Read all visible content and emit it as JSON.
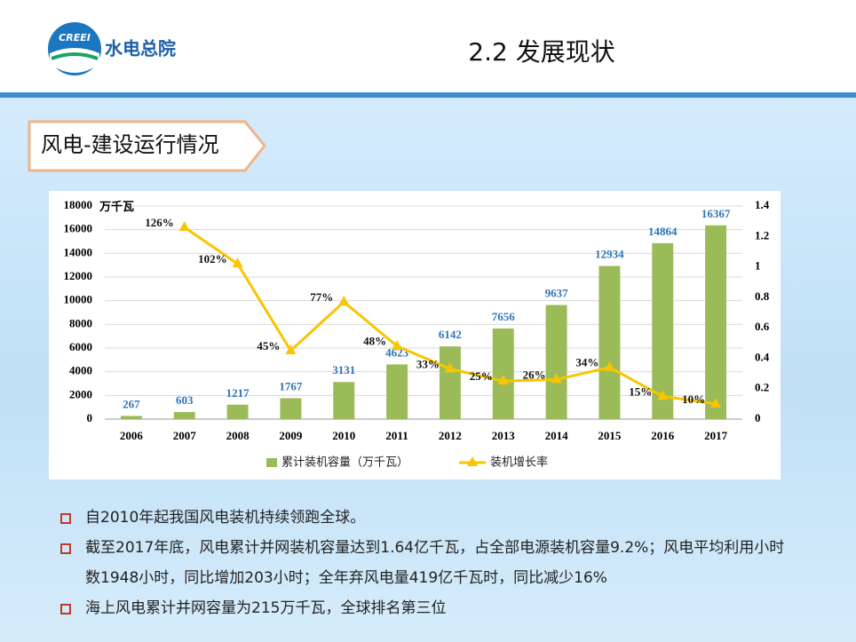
{
  "header": {
    "logo_text": "CREEI",
    "org": "水电总院",
    "title": "2.2 发展现状"
  },
  "section": "风电-建设运行情况",
  "chart_data": {
    "type": "bar",
    "categories": [
      "2006",
      "2007",
      "2008",
      "2009",
      "2010",
      "2011",
      "2012",
      "2013",
      "2014",
      "2015",
      "2016",
      "2017"
    ],
    "y_label": "万千瓦",
    "series": [
      {
        "name": "累计装机容量（万千瓦）",
        "type": "bar",
        "color": "#9bbb59",
        "values": [
          267,
          603,
          1217,
          1767,
          3131,
          4623,
          6142,
          7656,
          9637,
          12934,
          14864,
          16367
        ]
      },
      {
        "name": "装机增长率",
        "type": "line",
        "axis": "y2",
        "color": "#f7c600",
        "values": [
          null,
          1.26,
          1.02,
          0.45,
          0.77,
          0.48,
          0.33,
          0.25,
          0.26,
          0.34,
          0.15,
          0.1
        ],
        "value_labels": [
          null,
          "126%",
          "102%",
          "45%",
          "77%",
          "48%",
          "33%",
          "25%",
          "26%",
          "34%",
          "15%",
          "10%"
        ]
      }
    ],
    "ylim": [
      0,
      18000
    ],
    "yticks": [
      0,
      2000,
      4000,
      6000,
      8000,
      10000,
      12000,
      14000,
      16000,
      18000
    ],
    "y2lim": [
      0,
      1.4
    ],
    "y2ticks": [
      0,
      0.2,
      0.4,
      0.6,
      0.8,
      1,
      1.2,
      1.4
    ],
    "grid": true,
    "legend": "bottom"
  },
  "bullets": [
    "自2010年起我国风电装机持续领跑全球。",
    "截至2017年底，风电累计并网装机容量达到1.64亿千瓦，占全部电源装机容量9.2%；风电平均利用小时数1948小时，同比增加203小时；全年弃风电量419亿千瓦时，同比减少16%",
    "海上风电累计并网容量为215万千瓦，全球排名第三位"
  ]
}
